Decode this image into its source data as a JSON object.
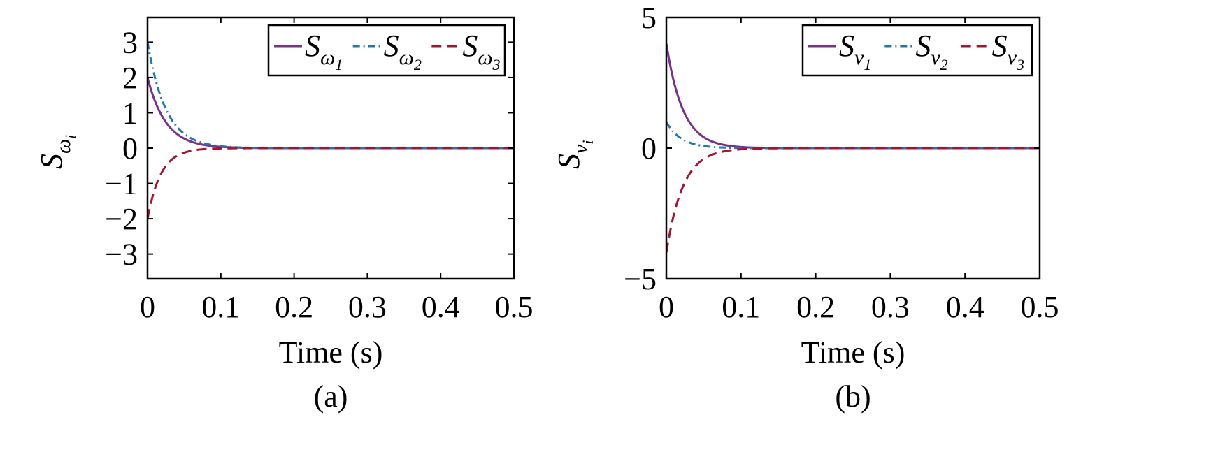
{
  "chart_data": [
    {
      "type": "line",
      "caption": "(a)",
      "xlabel": "Time (s)",
      "ylabel": {
        "base": "S",
        "sub": "ω",
        "subsub": "i"
      },
      "xlim": [
        0,
        0.5
      ],
      "ylim": [
        -3.7,
        3.7
      ],
      "xticks": [
        0,
        0.1,
        0.2,
        0.3,
        0.4,
        0.5
      ],
      "xtick_labels": [
        "0",
        "0.1",
        "0.2",
        "0.3",
        "0.4",
        "0.5"
      ],
      "yticks": [
        -3,
        -2,
        -1,
        0,
        1,
        2,
        3
      ],
      "ytick_labels": [
        "−3",
        "−2",
        "−1",
        "0",
        "1",
        "2",
        "3"
      ],
      "legend_position": "top-right",
      "grid": false,
      "series": [
        {
          "name": {
            "base": "S",
            "sub": "ω",
            "subsub": "1"
          },
          "color": "#7b2f8e",
          "dash": "solid",
          "x0": 0,
          "y0": 2,
          "decay_rate": 40
        },
        {
          "name": {
            "base": "S",
            "sub": "ω",
            "subsub": "2"
          },
          "color": "#1f77b4",
          "dash": "dashdot",
          "x0": 0,
          "y0": 3,
          "decay_rate": 40
        },
        {
          "name": {
            "base": "S",
            "sub": "ω",
            "subsub": "3"
          },
          "color": "#a2142f",
          "dash": "dashed",
          "x0": 0,
          "y0": -2,
          "decay_rate": 55
        }
      ]
    },
    {
      "type": "line",
      "caption": "(b)",
      "xlabel": "Time (s)",
      "ylabel": {
        "base": "S",
        "sub": "v",
        "subsub": "i"
      },
      "xlim": [
        0,
        0.5
      ],
      "ylim": [
        -5,
        5
      ],
      "xticks": [
        0,
        0.1,
        0.2,
        0.3,
        0.4,
        0.5
      ],
      "xtick_labels": [
        "0",
        "0.1",
        "0.2",
        "0.3",
        "0.4",
        "0.5"
      ],
      "yticks": [
        -5,
        0,
        5
      ],
      "ytick_labels": [
        "−5",
        "0",
        "5"
      ],
      "legend_position": "top-right",
      "grid": false,
      "series": [
        {
          "name": {
            "base": "S",
            "sub": "v",
            "subsub": "1"
          },
          "color": "#7b2f8e",
          "dash": "solid",
          "x0": 0,
          "y0": 4,
          "decay_rate": 45
        },
        {
          "name": {
            "base": "S",
            "sub": "v",
            "subsub": "2"
          },
          "color": "#1f77b4",
          "dash": "dashdot",
          "x0": 0,
          "y0": 1,
          "decay_rate": 50
        },
        {
          "name": {
            "base": "S",
            "sub": "v",
            "subsub": "3"
          },
          "color": "#a2142f",
          "dash": "dashed",
          "x0": 0,
          "y0": -4,
          "decay_rate": 45
        }
      ]
    }
  ]
}
